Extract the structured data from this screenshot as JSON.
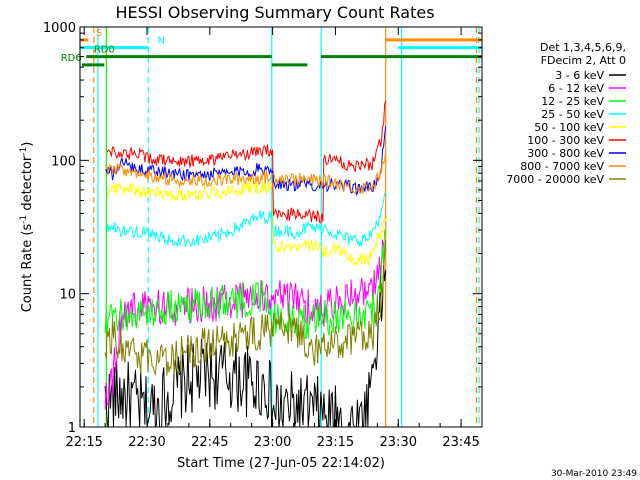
{
  "chart_data": {
    "type": "line",
    "title": "HESSI Observing Summary Count Rates",
    "xlabel": "Start Time (27-Jun-05 22:14:02)",
    "ylabel": "Count Rate (s",
    "ylabel_sup": "-1",
    "ylabel_mid": " detector",
    "ylabel_end": ")",
    "footer": "30-Mar-2010 23:49",
    "x_unit": "minutes since 22:14:02 (27-Jun-05)",
    "xlim": [
      0,
      96
    ],
    "ylim": [
      1,
      1000
    ],
    "yscale": "log",
    "grid": false,
    "x_ticks": [
      {
        "label": "22:15",
        "value": 1
      },
      {
        "label": "22:30",
        "value": 16
      },
      {
        "label": "22:45",
        "value": 31
      },
      {
        "label": "23:00",
        "value": 46
      },
      {
        "label": "23:15",
        "value": 61
      },
      {
        "label": "23:30",
        "value": 76
      },
      {
        "label": "23:45",
        "value": 91
      }
    ],
    "y_ticks": [
      {
        "label": "1",
        "value": 1
      },
      {
        "label": "10",
        "value": 10
      },
      {
        "label": "100",
        "value": 100
      },
      {
        "label": "1000",
        "value": 1000
      }
    ],
    "legend": {
      "placement": "right",
      "header": [
        "Det 1,3,4,5,6,9,",
        "FDecim 2, Att 0"
      ]
    },
    "series": [
      {
        "name": "3 - 6 keV",
        "color": "#000000",
        "points": [
          [
            6,
            1.5
          ],
          [
            10,
            1.8
          ],
          [
            16,
            1.3
          ],
          [
            20,
            1.6
          ],
          [
            25,
            2.2
          ],
          [
            30,
            2.5
          ],
          [
            35,
            2.5
          ],
          [
            40,
            2.2
          ],
          [
            45,
            2.0
          ],
          [
            46,
            1.3
          ],
          [
            50,
            1.4
          ],
          [
            57,
            1.3
          ],
          [
            58,
            1.2
          ],
          [
            61,
            1.1
          ],
          [
            64,
            1.0
          ],
          [
            68,
            1.1
          ],
          [
            70,
            3
          ],
          [
            73,
            15
          ]
        ]
      },
      {
        "name": "6 - 12 keV",
        "color": "#ff00ff",
        "points": [
          [
            6,
            1.8
          ],
          [
            8,
            2.5
          ],
          [
            10,
            7.5
          ],
          [
            14,
            7.6
          ],
          [
            17,
            7.8
          ],
          [
            22,
            7.9
          ],
          [
            28,
            8.2
          ],
          [
            34,
            8.5
          ],
          [
            40,
            9.2
          ],
          [
            44,
            9.5
          ],
          [
            46,
            9.3
          ],
          [
            50,
            9.0
          ],
          [
            56,
            7.8
          ],
          [
            58,
            7.5
          ],
          [
            61,
            9.0
          ],
          [
            65,
            9.5
          ],
          [
            69,
            10
          ],
          [
            71,
            12
          ],
          [
            73,
            25
          ]
        ]
      },
      {
        "name": "12 - 25 keV",
        "color": "#00ff00",
        "points": [
          [
            6,
            5.5
          ],
          [
            8,
            6.5
          ],
          [
            10,
            6.8
          ],
          [
            16,
            7.2
          ],
          [
            22,
            7.8
          ],
          [
            28,
            8.5
          ],
          [
            34,
            8.8
          ],
          [
            40,
            9.0
          ],
          [
            44,
            9.1
          ],
          [
            46,
            6.5
          ],
          [
            52,
            6.3
          ],
          [
            56,
            6.2
          ],
          [
            58,
            6.6
          ],
          [
            61,
            6.8
          ],
          [
            65,
            7.2
          ],
          [
            69,
            7.5
          ],
          [
            71,
            8
          ],
          [
            73,
            30
          ]
        ]
      },
      {
        "name": "25 - 50 keV",
        "color": "#00ffff",
        "points": [
          [
            6.5,
            32
          ],
          [
            10,
            30
          ],
          [
            16,
            28
          ],
          [
            22,
            25
          ],
          [
            28,
            25
          ],
          [
            33,
            27
          ],
          [
            38,
            32
          ],
          [
            43,
            38
          ],
          [
            46,
            38
          ],
          [
            46.2,
            30
          ],
          [
            52,
            29
          ],
          [
            55,
            32
          ],
          [
            57,
            30
          ],
          [
            58,
            32
          ],
          [
            61,
            28
          ],
          [
            65,
            25
          ],
          [
            69,
            26
          ],
          [
            72,
            40
          ],
          [
            73,
            55
          ]
        ]
      },
      {
        "name": "50 - 100 keV",
        "color": "#ffff00",
        "points": [
          [
            6.5,
            60
          ],
          [
            10,
            62
          ],
          [
            16,
            58
          ],
          [
            22,
            55
          ],
          [
            28,
            56
          ],
          [
            34,
            58
          ],
          [
            40,
            62
          ],
          [
            44,
            64
          ],
          [
            46,
            64
          ],
          [
            46.2,
            23
          ],
          [
            50,
            22
          ],
          [
            55,
            23
          ],
          [
            57,
            23
          ],
          [
            58,
            20
          ],
          [
            61,
            22
          ],
          [
            65,
            18
          ],
          [
            69,
            18
          ],
          [
            72,
            30
          ],
          [
            73,
            35
          ]
        ]
      },
      {
        "name": "100 - 300 keV",
        "color": "#ff0000",
        "points": [
          [
            6.5,
            120
          ],
          [
            10,
            112
          ],
          [
            14,
            110
          ],
          [
            18,
            102
          ],
          [
            24,
            98
          ],
          [
            30,
            100
          ],
          [
            36,
            108
          ],
          [
            42,
            115
          ],
          [
            46,
            120
          ],
          [
            46.2,
            38
          ],
          [
            52,
            40
          ],
          [
            57,
            38
          ],
          [
            58,
            36
          ],
          [
            58.2,
            102
          ],
          [
            61,
            100
          ],
          [
            66,
            90
          ],
          [
            70,
            95
          ],
          [
            72,
            150
          ],
          [
            73,
            280
          ]
        ]
      },
      {
        "name": "300 - 800 keV",
        "color": "#0000ff",
        "points": [
          [
            6,
            82
          ],
          [
            8,
            78
          ],
          [
            10,
            95
          ],
          [
            14,
            88
          ],
          [
            18,
            82
          ],
          [
            24,
            79
          ],
          [
            30,
            78
          ],
          [
            36,
            80
          ],
          [
            42,
            85
          ],
          [
            46,
            88
          ],
          [
            46.2,
            68
          ],
          [
            52,
            65
          ],
          [
            58,
            66
          ],
          [
            61,
            65
          ],
          [
            66,
            62
          ],
          [
            70,
            62
          ],
          [
            72,
            90
          ],
          [
            73,
            180
          ]
        ]
      },
      {
        "name": "800 - 7000 keV",
        "color": "#ff8c00",
        "points": [
          [
            6,
            83
          ],
          [
            10,
            85
          ],
          [
            14,
            82
          ],
          [
            18,
            75
          ],
          [
            24,
            70
          ],
          [
            30,
            70
          ],
          [
            36,
            72
          ],
          [
            42,
            74
          ],
          [
            46,
            75
          ],
          [
            52,
            72
          ],
          [
            58,
            70
          ],
          [
            61,
            68
          ],
          [
            66,
            62
          ],
          [
            70,
            64
          ],
          [
            72,
            82
          ],
          [
            73,
            120
          ]
        ]
      },
      {
        "name": "7000 - 20000 keV",
        "color": "#808000",
        "points": [
          [
            6,
            4.2
          ],
          [
            8,
            5.0
          ],
          [
            10,
            4.0
          ],
          [
            14,
            3.4
          ],
          [
            18,
            3.2
          ],
          [
            24,
            3.5
          ],
          [
            30,
            4.2
          ],
          [
            36,
            4.6
          ],
          [
            42,
            5.0
          ],
          [
            46,
            5.6
          ],
          [
            50,
            5.5
          ],
          [
            56,
            4.0
          ],
          [
            58,
            3.8
          ],
          [
            61,
            4.2
          ],
          [
            66,
            4.6
          ],
          [
            70,
            5.0
          ],
          [
            72,
            10
          ],
          [
            73,
            25
          ]
        ]
      }
    ],
    "flag_tracks": [
      {
        "label": "S",
        "color": "#ff8c00",
        "value": 800,
        "segments": [
          [
            0,
            2
          ]
        ],
        "label_x": 3.8
      },
      {
        "label": "S",
        "color": "#ff8c00",
        "value": 800,
        "segments": [
          [
            73,
            96
          ]
        ],
        "label_x": null
      },
      {
        "label": "N",
        "color": "#00ffff",
        "value": 700,
        "segments": [
          [
            0,
            16.3
          ],
          [
            76,
            96
          ]
        ],
        "label_x": 18.5
      },
      {
        "label": "RD0",
        "color": "#008000",
        "value": 600,
        "segments": [
          [
            1.5,
            45.8
          ],
          [
            57.5,
            96
          ]
        ],
        "label_x": 3.3
      },
      {
        "label": "RD6",
        "color": "#008000",
        "value": 520,
        "segments": [
          [
            0.5,
            5.8
          ],
          [
            45.8,
            54.3
          ]
        ],
        "label_x": -4.6
      }
    ],
    "vertical_markers": [
      {
        "value": 0,
        "color": "#00ffff",
        "dashed": false
      },
      {
        "value": 3.3,
        "color": "#ff8c00",
        "dashed": true
      },
      {
        "value": 4.3,
        "color": "#00ffff",
        "dashed": false
      },
      {
        "value": 6.3,
        "color": "#00ff00",
        "dashed": false
      },
      {
        "value": 16.3,
        "color": "#00ffff",
        "dashed": true
      },
      {
        "value": 45.8,
        "color": "#00ffff",
        "dashed": false
      },
      {
        "value": 57.6,
        "color": "#00ffff",
        "dashed": false
      },
      {
        "value": 73,
        "color": "#ff8c00",
        "dashed": false
      },
      {
        "value": 76.8,
        "color": "#00ffff",
        "dashed": false
      },
      {
        "value": 94.7,
        "color": "#ff8c00",
        "dashed": true
      },
      {
        "value": 95.3,
        "color": "#00ffff",
        "dashed": true
      }
    ]
  }
}
